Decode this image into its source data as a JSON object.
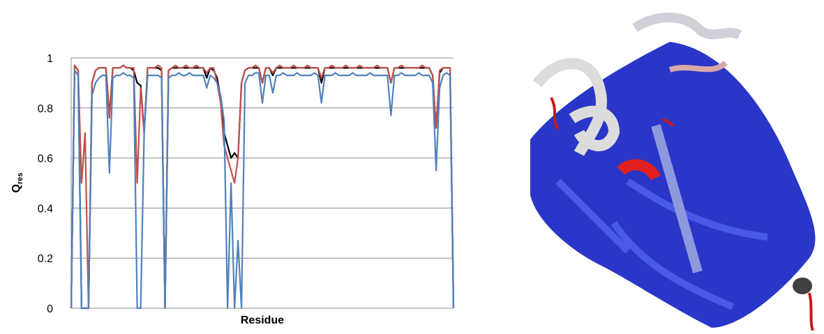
{
  "chart_data": {
    "type": "line",
    "x_label": "Residue",
    "y_label": {
      "text": "Q",
      "subscript": "res"
    },
    "ylim": [
      0,
      1
    ],
    "yticks": [
      0,
      0.2,
      0.4,
      0.6,
      0.8,
      1
    ],
    "grid": true,
    "series": [
      {
        "color": "#000000",
        "values": [
          0,
          0.97,
          0.95,
          0,
          0,
          0,
          0.9,
          0.95,
          0.96,
          0.96,
          0.96,
          0.77,
          0.96,
          0.96,
          0.96,
          0.97,
          0.96,
          0.96,
          0.95,
          0.9,
          0.89,
          0.7,
          0.96,
          0.96,
          0.96,
          0.96,
          0.95,
          0,
          0.95,
          0.96,
          0.96,
          0.96,
          0.96,
          0.96,
          0.96,
          0.96,
          0.96,
          0.96,
          0.96,
          0.92,
          0.96,
          0.95,
          0.92,
          0.84,
          0.7,
          0.65,
          0.6,
          0.62,
          0.6,
          0.9,
          0.95,
          0.96,
          0.96,
          0.96,
          0.96,
          0.9,
          0.96,
          0.96,
          0.93,
          0.96,
          0.96,
          0.96,
          0.96,
          0.96,
          0.96,
          0.96,
          0.96,
          0.96,
          0.96,
          0.96,
          0.96,
          0.96,
          0.9,
          0.96,
          0.96,
          0.96,
          0.96,
          0.96,
          0.96,
          0.96,
          0.96,
          0.96,
          0.96,
          0.96,
          0.96,
          0.96,
          0.96,
          0.96,
          0.96,
          0.96,
          0.96,
          0.96,
          0.9,
          0.96,
          0.96,
          0.96,
          0.96,
          0.96,
          0.96,
          0.96,
          0.96,
          0.96,
          0.96,
          0.96,
          0.93,
          0.72,
          0.94,
          0.96,
          0.96,
          0.96,
          0
        ]
      },
      {
        "color": "#c0504d",
        "values": [
          0,
          0.97,
          0.95,
          0.5,
          0.7,
          0,
          0.9,
          0.95,
          0.96,
          0.96,
          0.96,
          0.76,
          0.96,
          0.96,
          0.96,
          0.97,
          0.96,
          0.96,
          0.96,
          0.5,
          0.88,
          0.7,
          0.96,
          0.96,
          0.96,
          0.97,
          0.96,
          0,
          0.95,
          0.96,
          0.97,
          0.96,
          0.96,
          0.97,
          0.96,
          0.96,
          0.97,
          0.96,
          0.96,
          0.94,
          0.96,
          0.96,
          0.9,
          0.82,
          0.65,
          0.6,
          0.55,
          0.5,
          0.6,
          0.9,
          0.95,
          0.96,
          0.96,
          0.97,
          0.96,
          0.9,
          0.96,
          0.96,
          0.94,
          0.96,
          0.97,
          0.96,
          0.96,
          0.96,
          0.97,
          0.96,
          0.96,
          0.96,
          0.97,
          0.96,
          0.96,
          0.96,
          0.92,
          0.96,
          0.96,
          0.97,
          0.96,
          0.96,
          0.96,
          0.97,
          0.96,
          0.96,
          0.96,
          0.97,
          0.96,
          0.96,
          0.96,
          0.96,
          0.97,
          0.96,
          0.96,
          0.96,
          0.9,
          0.96,
          0.96,
          0.97,
          0.96,
          0.96,
          0.96,
          0.96,
          0.96,
          0.97,
          0.96,
          0.96,
          0.93,
          0.72,
          0.95,
          0.96,
          0.96,
          0.96,
          0
        ]
      },
      {
        "color": "#4f81bd",
        "values": [
          0,
          0.95,
          0.93,
          0,
          0,
          0,
          0.85,
          0.9,
          0.92,
          0.93,
          0.93,
          0.54,
          0.92,
          0.93,
          0.93,
          0.94,
          0.93,
          0.93,
          0.92,
          0,
          0,
          0.7,
          0.93,
          0.93,
          0.93,
          0.93,
          0.92,
          0,
          0.92,
          0.93,
          0.93,
          0.94,
          0.93,
          0.93,
          0.94,
          0.93,
          0.93,
          0.93,
          0.93,
          0.88,
          0.93,
          0.92,
          0.9,
          0.85,
          0.75,
          0,
          0.5,
          0,
          0.27,
          0,
          0.9,
          0.93,
          0.93,
          0.94,
          0.94,
          0.82,
          0.93,
          0.93,
          0.86,
          0.93,
          0.93,
          0.94,
          0.93,
          0.93,
          0.93,
          0.94,
          0.93,
          0.93,
          0.93,
          0.93,
          0.94,
          0.93,
          0.82,
          0.93,
          0.93,
          0.93,
          0.94,
          0.93,
          0.93,
          0.93,
          0.93,
          0.94,
          0.93,
          0.93,
          0.93,
          0.93,
          0.94,
          0.93,
          0.93,
          0.93,
          0.93,
          0.93,
          0.77,
          0.93,
          0.93,
          0.94,
          0.93,
          0.93,
          0.93,
          0.93,
          0.94,
          0.93,
          0.93,
          0.93,
          0.9,
          0.55,
          0.88,
          0.93,
          0.94,
          0.93,
          0
        ]
      }
    ]
  }
}
